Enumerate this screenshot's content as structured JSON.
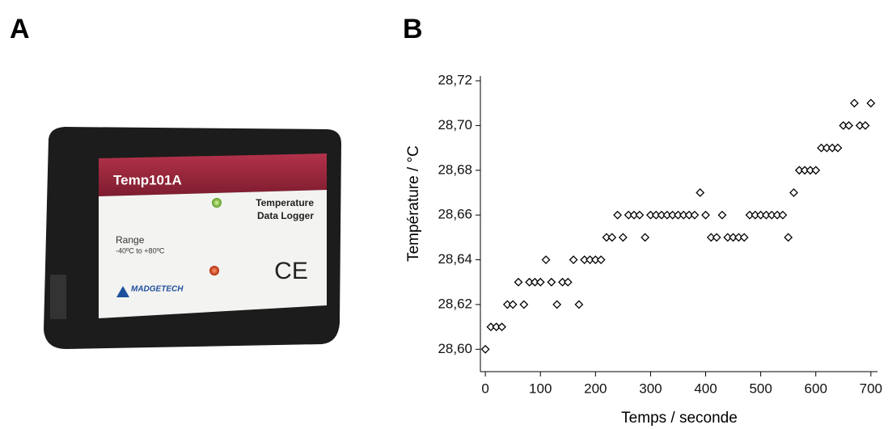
{
  "panel_labels": [
    "A",
    "B"
  ],
  "device": {
    "model": "Temp101A",
    "product": [
      "Temperature",
      "Data Logger"
    ],
    "range_label": "Range",
    "range": "-40ºC to +80ºC",
    "brand": "MADGETECH",
    "mark": "CE"
  },
  "chart_data": {
    "type": "scatter",
    "x_label": "Temps / seconde",
    "y_label": "Température / °C",
    "x": [
      0,
      10,
      20,
      30,
      40,
      50,
      60,
      70,
      80,
      90,
      100,
      110,
      120,
      130,
      140,
      150,
      160,
      170,
      180,
      190,
      200,
      210,
      220,
      230,
      240,
      250,
      260,
      270,
      280,
      290,
      300,
      310,
      320,
      330,
      340,
      350,
      360,
      370,
      380,
      390,
      400,
      410,
      420,
      430,
      440,
      450,
      460,
      470,
      480,
      490,
      500,
      510,
      520,
      530,
      540,
      550,
      560,
      570,
      580,
      590,
      600,
      610,
      620,
      630,
      640,
      650,
      660,
      670,
      680,
      690,
      700
    ],
    "values": [
      28.6,
      28.61,
      28.61,
      28.61,
      28.62,
      28.62,
      28.63,
      28.62,
      28.63,
      28.63,
      28.63,
      28.64,
      28.63,
      28.62,
      28.63,
      28.63,
      28.64,
      28.62,
      28.64,
      28.64,
      28.64,
      28.64,
      28.65,
      28.65,
      28.66,
      28.65,
      28.66,
      28.66,
      28.66,
      28.65,
      28.66,
      28.66,
      28.66,
      28.66,
      28.66,
      28.66,
      28.66,
      28.66,
      28.66,
      28.67,
      28.66,
      28.65,
      28.65,
      28.66,
      28.65,
      28.65,
      28.65,
      28.65,
      28.66,
      28.66,
      28.66,
      28.66,
      28.66,
      28.66,
      28.66,
      28.65,
      28.67,
      28.68,
      28.68,
      28.68,
      28.68,
      28.69,
      28.69,
      28.69,
      28.69,
      28.7,
      28.7,
      28.71,
      28.7,
      28.7,
      28.71
    ],
    "marker": "diamond",
    "color": "#000000",
    "xlim": [
      -9,
      712
    ],
    "xticks": [
      0,
      100,
      200,
      300,
      400,
      500,
      600,
      700
    ],
    "ylim": [
      28.59,
      28.72
    ],
    "yticks": [
      {
        "value": 28.6,
        "label": "28,60"
      },
      {
        "value": 28.62,
        "label": "28,62"
      },
      {
        "value": 28.64,
        "label": "28,64"
      },
      {
        "value": 28.66,
        "label": "28,66"
      },
      {
        "value": 28.68,
        "label": "28,68"
      },
      {
        "value": 28.7,
        "label": "28,70"
      },
      {
        "value": 28.72,
        "label": "28,72"
      }
    ]
  }
}
